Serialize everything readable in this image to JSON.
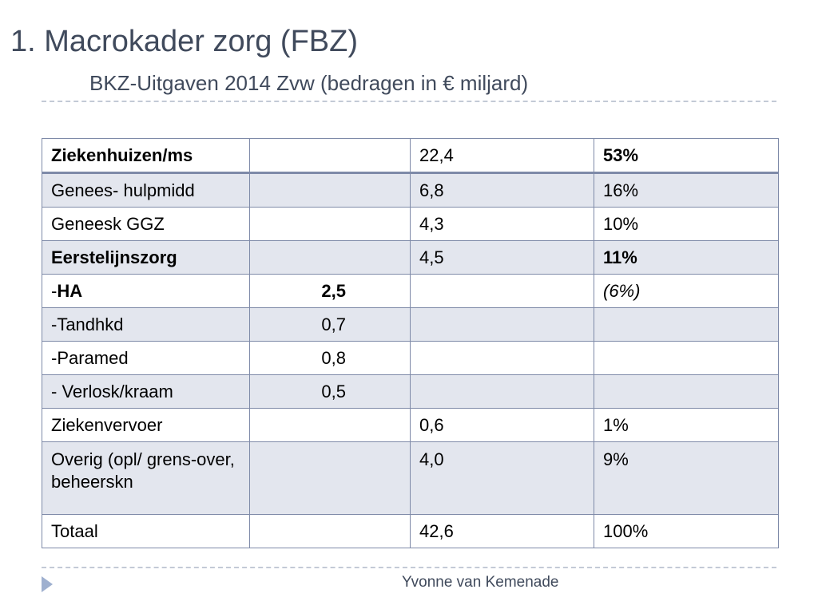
{
  "slide": {
    "title": "1. Macrokader zorg (FBZ)",
    "subtitle": "BKZ-Uitgaven 2014 Zvw (bedragen in € miljard)",
    "footer": "Yvonne van Kemenade"
  },
  "table": {
    "rows": [
      {
        "label": "Ziekenhuizen/ms",
        "sub": "",
        "amount": "22,4",
        "pct": "53%"
      },
      {
        "label": "Genees- hulpmidd",
        "sub": "",
        "amount": "6,8",
        "pct": "16%"
      },
      {
        "label": "Geneesk GGZ",
        "sub": "",
        "amount": "4,3",
        "pct": "10%"
      },
      {
        "label": "Eerstelijnszorg",
        "sub": "",
        "amount": "4,5",
        "pct": "11%"
      },
      {
        "label_prefix": "-",
        "label": "HA",
        "sub": "2,5",
        "amount": "",
        "pct": "(6%)"
      },
      {
        "label": "-Tandhkd",
        "sub": "0,7",
        "amount": "",
        "pct": ""
      },
      {
        "label": "-Paramed",
        "sub": "0,8",
        "amount": "",
        "pct": ""
      },
      {
        "label": "- Verlosk/kraam",
        "sub": "0,5",
        "amount": "",
        "pct": ""
      },
      {
        "label": "Ziekenvervoer",
        "sub": "",
        "amount": "0,6",
        "pct": "1%"
      },
      {
        "label": "Overig (opl/ grens-over, beheerskn",
        "sub": "",
        "amount": "4,0",
        "pct": "9%"
      },
      {
        "label": "Totaal",
        "sub": "",
        "amount": "42,6",
        "pct": "100%"
      }
    ]
  },
  "colors": {
    "title": "#404a5c",
    "table_border": "#7e8aa8",
    "row_alt_fill": "#e3e6ee",
    "nav_arrow": "#9fb0cf"
  },
  "icons": {
    "nav": "triangle-right-icon"
  }
}
